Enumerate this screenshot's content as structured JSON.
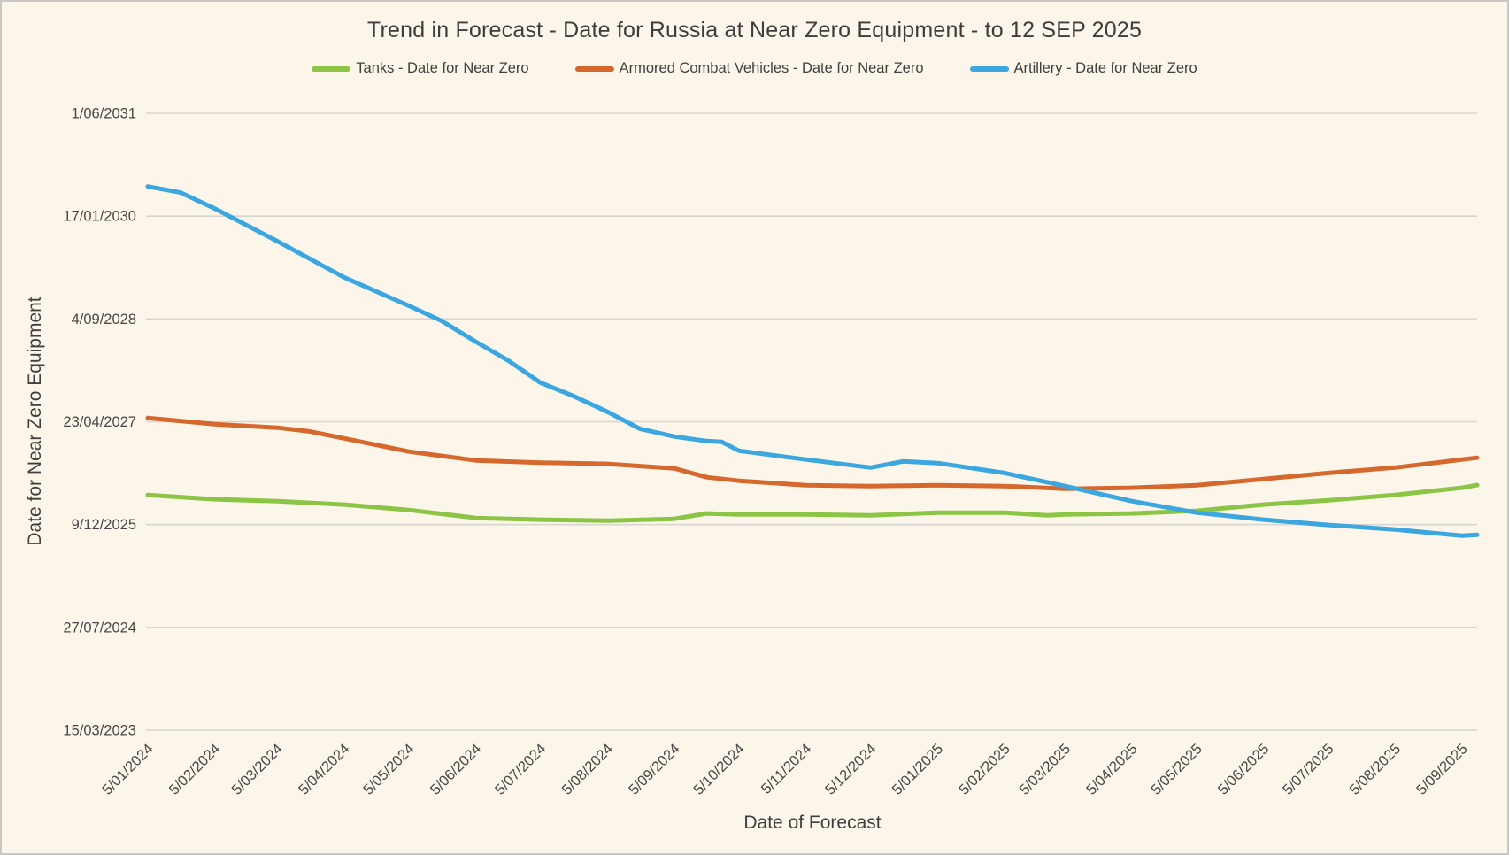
{
  "chart_data": {
    "type": "line",
    "title": "Trend in Forecast - Date for Russia at Near Zero Equipment - to 12 SEP 2025",
    "grid": true,
    "x_axis": {
      "title": "Date of Forecast",
      "min": "5/01/2024",
      "max": "12/09/2025",
      "tick_labels": [
        "5/01/2024",
        "5/02/2024",
        "5/03/2024",
        "5/04/2024",
        "5/05/2024",
        "5/06/2024",
        "5/07/2024",
        "5/08/2024",
        "5/09/2024",
        "5/10/2024",
        "5/11/2024",
        "5/12/2024",
        "5/01/2025",
        "5/02/2025",
        "5/03/2025",
        "5/04/2025",
        "5/05/2025",
        "5/06/2025",
        "5/07/2025",
        "5/08/2025",
        "5/09/2025"
      ]
    },
    "y_axis": {
      "title": "Date for Near Zero Equipment",
      "min": "15/03/2023",
      "max": "1/06/2031",
      "tick_interval_days": 500,
      "tick_labels": [
        "15/03/2023",
        "27/07/2024",
        "9/12/2025",
        "23/04/2027",
        "4/09/2028",
        "17/01/2030",
        "1/06/2031"
      ]
    },
    "legend": {
      "position": "top",
      "entries": [
        {
          "label": "Tanks - Date for Near Zero",
          "color": "#8CC545"
        },
        {
          "label": "Armored Combat Vehicles - Date for Near Zero",
          "color": "#D6682E"
        },
        {
          "label": "Artillery - Date for Near Zero",
          "color": "#3BA6DF"
        }
      ]
    },
    "series": [
      {
        "name": "Tanks - Date for Near Zero",
        "color": "#8CC545",
        "points": [
          {
            "x": "5/01/2024",
            "y": "2/05/2026"
          },
          {
            "x": "5/02/2024",
            "y": "11/04/2026"
          },
          {
            "x": "5/03/2024",
            "y": "2/04/2026"
          },
          {
            "x": "5/04/2024",
            "y": "16/03/2026"
          },
          {
            "x": "5/05/2024",
            "y": "18/02/2026"
          },
          {
            "x": "5/06/2024",
            "y": "10/01/2026"
          },
          {
            "x": "5/07/2024",
            "y": "2/01/2026"
          },
          {
            "x": "5/08/2024",
            "y": "28/12/2025"
          },
          {
            "x": "5/09/2024",
            "y": "6/01/2026"
          },
          {
            "x": "20/09/2024",
            "y": "1/02/2026"
          },
          {
            "x": "5/10/2024",
            "y": "27/01/2026"
          },
          {
            "x": "5/11/2024",
            "y": "27/01/2026"
          },
          {
            "x": "5/12/2024",
            "y": "23/01/2026"
          },
          {
            "x": "5/01/2025",
            "y": "5/02/2026"
          },
          {
            "x": "5/02/2025",
            "y": "5/02/2026"
          },
          {
            "x": "25/02/2025",
            "y": "23/01/2026"
          },
          {
            "x": "5/03/2025",
            "y": "27/01/2026"
          },
          {
            "x": "5/04/2025",
            "y": "1/02/2026"
          },
          {
            "x": "5/05/2025",
            "y": "14/02/2026"
          },
          {
            "x": "5/06/2025",
            "y": "16/03/2026"
          },
          {
            "x": "5/07/2025",
            "y": "6/04/2026"
          },
          {
            "x": "5/08/2025",
            "y": "2/05/2026"
          },
          {
            "x": "5/09/2025",
            "y": "6/06/2026"
          },
          {
            "x": "12/09/2025",
            "y": "19/06/2026"
          }
        ]
      },
      {
        "name": "Armored Combat Vehicles - Date for Near Zero",
        "color": "#D6682E",
        "points": [
          {
            "x": "5/01/2024",
            "y": "11/05/2027"
          },
          {
            "x": "5/02/2024",
            "y": "11/04/2027"
          },
          {
            "x": "5/03/2024",
            "y": "25/03/2027"
          },
          {
            "x": "20/03/2024",
            "y": "7/03/2027"
          },
          {
            "x": "5/04/2024",
            "y": "1/02/2027"
          },
          {
            "x": "5/05/2024",
            "y": "29/11/2026"
          },
          {
            "x": "5/06/2024",
            "y": "17/10/2026"
          },
          {
            "x": "5/07/2024",
            "y": "6/10/2026"
          },
          {
            "x": "5/08/2024",
            "y": "30/09/2026"
          },
          {
            "x": "5/09/2024",
            "y": "8/09/2026"
          },
          {
            "x": "20/09/2024",
            "y": "27/07/2026"
          },
          {
            "x": "5/10/2024",
            "y": "10/07/2026"
          },
          {
            "x": "5/11/2024",
            "y": "18/06/2026"
          },
          {
            "x": "5/12/2024",
            "y": "14/06/2026"
          },
          {
            "x": "5/01/2025",
            "y": "18/06/2026"
          },
          {
            "x": "5/02/2025",
            "y": "14/06/2026"
          },
          {
            "x": "5/03/2025",
            "y": "1/06/2026"
          },
          {
            "x": "5/04/2025",
            "y": "6/06/2026"
          },
          {
            "x": "5/05/2025",
            "y": "18/06/2026"
          },
          {
            "x": "5/06/2025",
            "y": "18/07/2026"
          },
          {
            "x": "5/07/2025",
            "y": "17/08/2026"
          },
          {
            "x": "5/08/2025",
            "y": "12/09/2026"
          },
          {
            "x": "5/09/2025",
            "y": "21/10/2026"
          },
          {
            "x": "12/09/2025",
            "y": "30/10/2026"
          }
        ]
      },
      {
        "name": "Artillery - Date for Near Zero",
        "color": "#3BA6DF",
        "points": [
          {
            "x": "5/01/2024",
            "y": "10/06/2030"
          },
          {
            "x": "20/01/2024",
            "y": "12/05/2030"
          },
          {
            "x": "5/02/2024",
            "y": "23/02/2030"
          },
          {
            "x": "5/03/2024",
            "y": "17/09/2029"
          },
          {
            "x": "5/04/2024",
            "y": "25/03/2029"
          },
          {
            "x": "5/05/2024",
            "y": "7/11/2028"
          },
          {
            "x": "20/05/2024",
            "y": "26/08/2028"
          },
          {
            "x": "5/06/2024",
            "y": "16/05/2028"
          },
          {
            "x": "20/06/2024",
            "y": "15/02/2028"
          },
          {
            "x": "5/07/2024",
            "y": "30/10/2027"
          },
          {
            "x": "20/07/2024",
            "y": "27/08/2027"
          },
          {
            "x": "5/08/2024",
            "y": "10/06/2027"
          },
          {
            "x": "20/08/2024",
            "y": "20/03/2027"
          },
          {
            "x": "5/09/2024",
            "y": "10/02/2027"
          },
          {
            "x": "20/09/2024",
            "y": "19/01/2027"
          },
          {
            "x": "27/09/2024",
            "y": "15/01/2027"
          },
          {
            "x": "5/10/2024",
            "y": "3/12/2026"
          },
          {
            "x": "5/11/2024",
            "y": "21/10/2026"
          },
          {
            "x": "5/12/2024",
            "y": "12/09/2026"
          },
          {
            "x": "20/12/2024",
            "y": "12/10/2026"
          },
          {
            "x": "5/01/2025",
            "y": "4/10/2026"
          },
          {
            "x": "5/02/2025",
            "y": "17/08/2026"
          },
          {
            "x": "5/03/2025",
            "y": "14/06/2026"
          },
          {
            "x": "5/04/2025",
            "y": "2/04/2026"
          },
          {
            "x": "5/05/2025",
            "y": "5/02/2026"
          },
          {
            "x": "5/06/2025",
            "y": "2/01/2026"
          },
          {
            "x": "5/07/2025",
            "y": "7/12/2025"
          },
          {
            "x": "5/08/2025",
            "y": "15/11/2025"
          },
          {
            "x": "5/09/2025",
            "y": "16/10/2025"
          },
          {
            "x": "12/09/2025",
            "y": "20/10/2025"
          }
        ]
      }
    ],
    "style": {
      "background": "#FBF6E9",
      "gridline": "#D8D6D1",
      "axis_text": "#474747",
      "title_text": "#3D3D3D",
      "border": "#C9C7C3"
    }
  }
}
